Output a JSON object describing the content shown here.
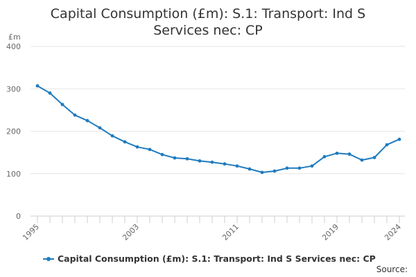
{
  "chart_data": {
    "type": "line",
    "title": "Capital Consumption (£m): S.1: Transport: Ind S Services nec: CP",
    "ylabel": "£m",
    "xlabel": "",
    "ylim": [
      0,
      400
    ],
    "yticks": [
      "0",
      "100",
      "200",
      "300",
      "400"
    ],
    "xlim": [
      1995,
      2024
    ],
    "xticks": [
      1995,
      2003,
      2011,
      2019,
      2024
    ],
    "series": [
      {
        "name": "Capital Consumption (£m): S.1: Transport: Ind S Services nec: CP",
        "color": "#1f7bbf",
        "x": [
          1995,
          1996,
          1997,
          1998,
          1999,
          2000,
          2001,
          2002,
          2003,
          2004,
          2005,
          2006,
          2007,
          2008,
          2009,
          2010,
          2011,
          2012,
          2013,
          2014,
          2015,
          2016,
          2017,
          2018,
          2019,
          2020,
          2021,
          2022,
          2023,
          2024
        ],
        "values": [
          307,
          290,
          263,
          238,
          225,
          208,
          189,
          175,
          163,
          157,
          145,
          137,
          135,
          130,
          127,
          123,
          118,
          111,
          103,
          106,
          113,
          113,
          118,
          140,
          148,
          146,
          132,
          138,
          168,
          181
        ]
      }
    ]
  },
  "footer": {
    "source_label": "Source:"
  }
}
